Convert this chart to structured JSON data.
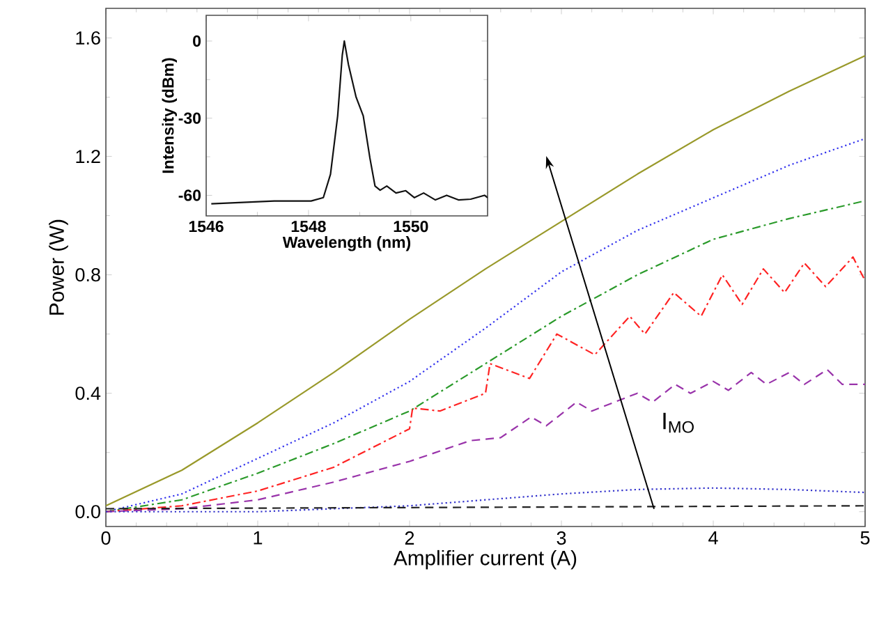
{
  "chart_data": [
    {
      "type": "line",
      "xlabel": "Amplifier current (A)",
      "ylabel": "Power (W)",
      "xlim": [
        0,
        5
      ],
      "ylim": [
        -0.05,
        1.7
      ],
      "xticks": [
        0,
        1,
        2,
        3,
        4,
        5
      ],
      "yticks": [
        {
          "value": 0,
          "label": "0.0"
        },
        {
          "value": 0.4,
          "label": "0.4"
        },
        {
          "value": 0.8,
          "label": "0.8"
        },
        {
          "value": 1.2,
          "label": "1.2"
        },
        {
          "value": 1.6,
          "label": "1.6"
        }
      ],
      "annotations": [
        "I$_{MO}$"
      ],
      "series": [
        {
          "color": "#99992a",
          "line_style": "solid",
          "x": [
            0,
            0.5,
            1,
            1.5,
            2,
            2.5,
            3,
            3.5,
            4,
            4.5,
            5
          ],
          "values": [
            0.02,
            0.14,
            0.3,
            0.47,
            0.65,
            0.82,
            0.98,
            1.14,
            1.29,
            1.42,
            1.54
          ]
        },
        {
          "color": "#3333ee",
          "line_style": "dotted",
          "x": [
            0,
            0.5,
            1,
            1.5,
            2,
            2.5,
            3,
            3.5,
            4,
            4.5,
            5
          ],
          "values": [
            0,
            0.06,
            0.18,
            0.3,
            0.44,
            0.62,
            0.81,
            0.95,
            1.06,
            1.17,
            1.26
          ]
        },
        {
          "color": "#2a9a2a",
          "line_style": "dashdot",
          "x": [
            0,
            0.5,
            1,
            1.5,
            2,
            2.5,
            3,
            3.5,
            4,
            4.5,
            5
          ],
          "values": [
            0,
            0.04,
            0.13,
            0.23,
            0.34,
            0.5,
            0.66,
            0.8,
            0.92,
            0.99,
            1.05
          ]
        },
        {
          "color": "#ff2222",
          "line_style": "dashdot",
          "x": [
            0,
            0.5,
            1,
            1.5,
            2,
            2.02,
            2.2,
            2.5,
            2.53,
            2.79,
            2.97,
            3.22,
            3.45,
            3.55,
            3.74,
            3.92,
            4.06,
            4.19,
            4.33,
            4.47,
            4.6,
            4.74,
            4.92,
            5
          ],
          "values": [
            0,
            0.02,
            0.07,
            0.15,
            0.28,
            0.35,
            0.34,
            0.4,
            0.5,
            0.45,
            0.6,
            0.53,
            0.66,
            0.6,
            0.74,
            0.66,
            0.8,
            0.7,
            0.82,
            0.74,
            0.84,
            0.76,
            0.86,
            0.78
          ]
        },
        {
          "color": "#9933aa",
          "line_style": "dashed",
          "x": [
            0,
            0.5,
            1,
            1.5,
            2,
            2.4,
            2.6,
            2.8,
            2.9,
            3.1,
            3.2,
            3.5,
            3.6,
            3.75,
            3.85,
            4.0,
            4.1,
            4.25,
            4.35,
            4.5,
            4.6,
            4.75,
            4.85,
            5
          ],
          "values": [
            0,
            0.01,
            0.04,
            0.1,
            0.17,
            0.24,
            0.25,
            0.32,
            0.29,
            0.37,
            0.34,
            0.4,
            0.37,
            0.43,
            0.4,
            0.44,
            0.41,
            0.47,
            0.43,
            0.47,
            0.43,
            0.48,
            0.43,
            0.43
          ]
        },
        {
          "color": "#3333cc",
          "line_style": "dotted",
          "x": [
            0,
            1,
            2,
            3,
            3.5,
            4,
            4.5,
            5
          ],
          "values": [
            0,
            0.0,
            0.02,
            0.06,
            0.075,
            0.08,
            0.075,
            0.065
          ]
        },
        {
          "color": "#222222",
          "line_style": "dashed",
          "x": [
            0,
            5
          ],
          "values": [
            0.01,
            0.02
          ]
        }
      ]
    },
    {
      "type": "line",
      "xlabel": "Wavelength (nm)",
      "ylabel": "Intensity (dBm)",
      "xlim": [
        1546,
        1551.5
      ],
      "ylim": [
        -68,
        10
      ],
      "xticks": [
        1546,
        1548,
        1550
      ],
      "yticks": [
        0,
        -30,
        -60
      ],
      "series": [
        {
          "color": "#111111",
          "line_style": "solid",
          "x": [
            1546.1,
            1547.33,
            1548.05,
            1548.29,
            1548.43,
            1548.57,
            1548.66,
            1548.7,
            1548.78,
            1548.93,
            1549.07,
            1549.2,
            1549.3,
            1549.4,
            1549.53,
            1549.71,
            1549.9,
            1550.07,
            1550.25,
            1550.48,
            1550.7,
            1550.93,
            1551.17,
            1551.44,
            1551.5
          ],
          "values": [
            -63.3,
            -62.2,
            -62.2,
            -60.9,
            -51.8,
            -29.1,
            -5.5,
            0,
            -9.1,
            -21.8,
            -29.1,
            -45.5,
            -56.4,
            -58,
            -56.4,
            -59.1,
            -58.2,
            -60.9,
            -59.1,
            -61.8,
            -60,
            -61.8,
            -61.5,
            -60,
            -60.9
          ]
        }
      ]
    }
  ]
}
